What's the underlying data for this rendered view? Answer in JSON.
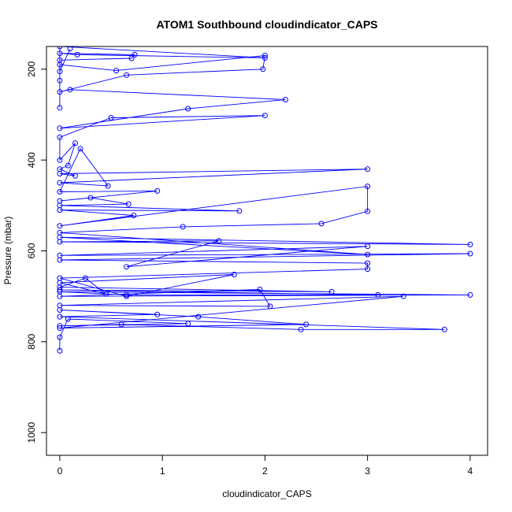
{
  "chart_data": {
    "type": "scatter",
    "title": "ATOM1 Southbound cloudindicator_CAPS",
    "xlabel": "cloudindicator_CAPS",
    "ylabel": "Pressure (mbar)",
    "xlim": [
      -0.13,
      4.17
    ],
    "ylim": [
      1050,
      150
    ],
    "y_inverted": true,
    "x_ticks": [
      0,
      1,
      2,
      3,
      4
    ],
    "y_ticks": [
      200,
      400,
      600,
      800,
      1000
    ],
    "grid": false,
    "legend": "none",
    "color": "#0000ff",
    "series": [
      {
        "values": [
          [
            0,
            820
          ],
          [
            0,
            790
          ],
          [
            0.08,
            750
          ],
          [
            1.25,
            760
          ],
          [
            0,
            765
          ],
          [
            0.6,
            762
          ],
          [
            2.35,
            773
          ],
          [
            3.75,
            773
          ],
          [
            0,
            745
          ],
          [
            0.95,
            740
          ],
          [
            0,
            730
          ],
          [
            1.35,
            745
          ],
          [
            2.4,
            762
          ],
          [
            0,
            770
          ],
          [
            3.35,
            700
          ],
          [
            0,
            720
          ],
          [
            2.05,
            722
          ],
          [
            1.95,
            685
          ],
          [
            0,
            700
          ],
          [
            4,
            697
          ],
          [
            0,
            690
          ],
          [
            0.65,
            697
          ],
          [
            3.1,
            697
          ],
          [
            0,
            686
          ],
          [
            2.65,
            690
          ],
          [
            0,
            680
          ],
          [
            0.25,
            660
          ],
          [
            0.45,
            695
          ],
          [
            0,
            670
          ],
          [
            1.7,
            652
          ],
          [
            0.65,
            700
          ],
          [
            0,
            660
          ],
          [
            3,
            640
          ],
          [
            3,
            627
          ],
          [
            0,
            620
          ],
          [
            4,
            606
          ],
          [
            0,
            610
          ],
          [
            3,
            590
          ],
          [
            0.65,
            635
          ],
          [
            1.55,
            578
          ],
          [
            0,
            580
          ],
          [
            4,
            586
          ],
          [
            0,
            570
          ],
          [
            3,
            608
          ],
          [
            0,
            560
          ],
          [
            1.2,
            547
          ],
          [
            2.55,
            540
          ],
          [
            3,
            513
          ],
          [
            3,
            458
          ],
          [
            0,
            545
          ],
          [
            0.72,
            522
          ],
          [
            0,
            510
          ],
          [
            1.75,
            512
          ],
          [
            0,
            500
          ],
          [
            0.67,
            497
          ],
          [
            0.3,
            483
          ],
          [
            0,
            490
          ],
          [
            0.95,
            468
          ],
          [
            0,
            470
          ],
          [
            0.2,
            375
          ],
          [
            0.47,
            457
          ],
          [
            0,
            450
          ],
          [
            3,
            420
          ],
          [
            0,
            430
          ],
          [
            0.15,
            435
          ],
          [
            0,
            420
          ],
          [
            0.08,
            412
          ],
          [
            0.15,
            363
          ],
          [
            0,
            400
          ],
          [
            0,
            350
          ],
          [
            0.5,
            307
          ],
          [
            2,
            302
          ],
          [
            0,
            330
          ],
          [
            1.25,
            287
          ],
          [
            2.2,
            267
          ],
          [
            0.1,
            245
          ],
          [
            0,
            250
          ],
          [
            0.65,
            213
          ],
          [
            1.98,
            200
          ],
          [
            2,
            170
          ],
          [
            0.55,
            203
          ],
          [
            0,
            190
          ],
          [
            0,
            180
          ],
          [
            0.7,
            176
          ],
          [
            0.73,
            168
          ],
          [
            0,
            165
          ],
          [
            0.17,
            168
          ],
          [
            2,
            175
          ],
          [
            0,
            150
          ],
          [
            0,
            140
          ],
          [
            0,
            285
          ],
          [
            0,
            225
          ],
          [
            0,
            205
          ],
          [
            0.1,
            155
          ]
        ]
      }
    ]
  }
}
